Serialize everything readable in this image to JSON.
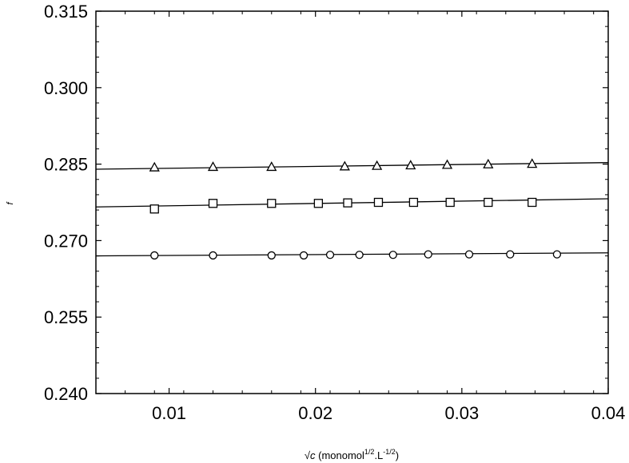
{
  "chart_data": {
    "type": "scatter",
    "title": "",
    "ylabel": "f",
    "xlabel": {
      "prefix": "√",
      "var": "c",
      "text": " (monomol",
      "sup1": "1/2",
      "mid": ".L",
      "sup2": "-1/2",
      "end": ")"
    },
    "xlim": [
      0.005,
      0.04
    ],
    "ylim": [
      0.24,
      0.315
    ],
    "x_ticks": [
      0.01,
      0.02,
      0.03,
      0.04
    ],
    "x_tick_labels": [
      "0.01",
      "0.02",
      "0.03",
      "0.04"
    ],
    "y_ticks": [
      0.24,
      0.255,
      0.27,
      0.285,
      0.3,
      0.315
    ],
    "y_tick_labels": [
      "0.240",
      "0.255",
      "0.270",
      "0.285",
      "0.300",
      "0.315"
    ],
    "grid": false,
    "legend": "none",
    "series": [
      {
        "marker": "triangle",
        "x": [
          0.009,
          0.013,
          0.017,
          0.022,
          0.0242,
          0.0265,
          0.029,
          0.0318,
          0.0348
        ],
        "y": [
          0.2843,
          0.2844,
          0.2844,
          0.2845,
          0.2846,
          0.2847,
          0.2848,
          0.2849,
          0.285
        ],
        "fit": [
          [
            0.005,
            0.284
          ],
          [
            0.04,
            0.2853
          ]
        ]
      },
      {
        "marker": "square",
        "x": [
          0.009,
          0.013,
          0.017,
          0.0202,
          0.0222,
          0.0243,
          0.0267,
          0.0292,
          0.0318,
          0.0348
        ],
        "y": [
          0.2762,
          0.2773,
          0.2773,
          0.2773,
          0.2774,
          0.2775,
          0.2775,
          0.2775,
          0.2775,
          0.2775
        ],
        "fit": [
          [
            0.005,
            0.2766
          ],
          [
            0.04,
            0.2782
          ]
        ]
      },
      {
        "marker": "circle",
        "x": [
          0.009,
          0.013,
          0.017,
          0.0192,
          0.021,
          0.023,
          0.0253,
          0.0277,
          0.0305,
          0.0333,
          0.0365
        ],
        "y": [
          0.2671,
          0.2671,
          0.2671,
          0.2671,
          0.2672,
          0.2672,
          0.2672,
          0.2673,
          0.2673,
          0.2673,
          0.2673
        ],
        "fit": [
          [
            0.005,
            0.267
          ],
          [
            0.04,
            0.2676
          ]
        ]
      }
    ]
  }
}
